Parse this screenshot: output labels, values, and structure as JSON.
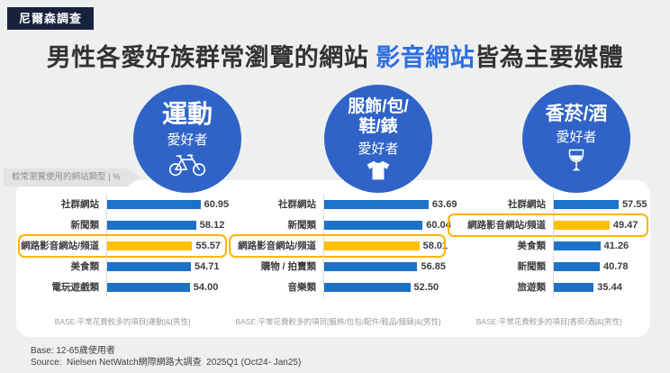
{
  "badge": "尼爾森調查",
  "title": {
    "part1": "男性各愛好族群常瀏覽的網站 ",
    "highlight": "影音網站",
    "part2": "皆為主要媒體"
  },
  "ribbon": "較常瀏覽使用的網站類型 | %",
  "groups": [
    {
      "title": "運動",
      "subtitle": "愛好者",
      "icon": "bicycle-icon",
      "base": "BASE:平常花費較多的項目[運動]&[男性]",
      "rows": [
        {
          "label": "社群網站",
          "value": "60.95"
        },
        {
          "label": "新聞類",
          "value": "58.12"
        },
        {
          "label": "網路影音網站/頻道",
          "value": "55.57",
          "highlight": true
        },
        {
          "label": "美食類",
          "value": "54.71"
        },
        {
          "label": "電玩遊戲類",
          "value": "54.00"
        }
      ]
    },
    {
      "title": "服飾/包/\n鞋/錶",
      "subtitle": "愛好者",
      "icon": "tshirt-icon",
      "base": "BASE:平常花費較多的項目[服飾/包包/配件/鞋品/鐘錶]&[男性]",
      "rows": [
        {
          "label": "社群網站",
          "value": "63.69"
        },
        {
          "label": "新聞類",
          "value": "60.04"
        },
        {
          "label": "網路影音網站/頻道",
          "value": "58.01",
          "highlight": true
        },
        {
          "label": "購物 / 拍賣類",
          "value": "56.85"
        },
        {
          "label": "音樂類",
          "value": "52.50"
        }
      ]
    },
    {
      "title": "香菸/酒",
      "subtitle": "愛好者",
      "icon": "wine-glass-icon",
      "base": "BASE:平常花費較多的項目[香菸/酒]&[男性]",
      "rows": [
        {
          "label": "社群網站",
          "value": "57.55"
        },
        {
          "label": "網路影音網站/頻道",
          "value": "49.47",
          "highlight": true
        },
        {
          "label": "美食類",
          "value": "41.26"
        },
        {
          "label": "新聞類",
          "value": "40.78"
        },
        {
          "label": "旅遊類",
          "value": "35.44"
        }
      ]
    }
  ],
  "footer": {
    "line1": "Base: 12-65歲使用者",
    "line2": "Source:  Nielsen NetWatch網際網路大調查  2025Q1 (Oct24- Jan25)"
  },
  "colors": {
    "background": "#eef0f0",
    "badge_navy": "#18223f",
    "title_dark": "#333333",
    "title_blue": "#2d6fe0",
    "circle_blue": "#2f63c7",
    "bar_blue": "#1b72c7",
    "highlight_yellow": "#ffc000",
    "highlight_border": "#ffb400"
  },
  "chart_data": [
    {
      "type": "bar",
      "orientation": "horizontal",
      "title": "運動愛好者",
      "categories": [
        "社群網站",
        "新聞類",
        "網路影音網站/頻道",
        "美食類",
        "電玩遊戲類"
      ],
      "values": [
        60.95,
        58.12,
        55.57,
        54.71,
        54.0
      ],
      "highlight_category": "網路影音網站/頻道",
      "unit": "%",
      "xlabel": "較常瀏覽使用的網站類型",
      "note": "BASE:平常花費較多的項目[運動]&[男性]"
    },
    {
      "type": "bar",
      "orientation": "horizontal",
      "title": "服飾/包/鞋/錶愛好者",
      "categories": [
        "社群網站",
        "新聞類",
        "網路影音網站/頻道",
        "購物 / 拍賣類",
        "音樂類"
      ],
      "values": [
        63.69,
        60.04,
        58.01,
        56.85,
        52.5
      ],
      "highlight_category": "網路影音網站/頻道",
      "unit": "%",
      "xlabel": "較常瀏覽使用的網站類型",
      "note": "BASE:平常花費較多的項目[服飾/包包/配件/鞋品/鐘錶]&[男性]"
    },
    {
      "type": "bar",
      "orientation": "horizontal",
      "title": "香菸/酒愛好者",
      "categories": [
        "社群網站",
        "網路影音網站/頻道",
        "美食類",
        "新聞類",
        "旅遊類"
      ],
      "values": [
        57.55,
        49.47,
        41.26,
        40.78,
        35.44
      ],
      "highlight_category": "網路影音網站/頻道",
      "unit": "%",
      "xlabel": "較常瀏覽使用的網站類型",
      "note": "BASE:平常花費較多的項目[香菸/酒]&[男性]"
    }
  ]
}
